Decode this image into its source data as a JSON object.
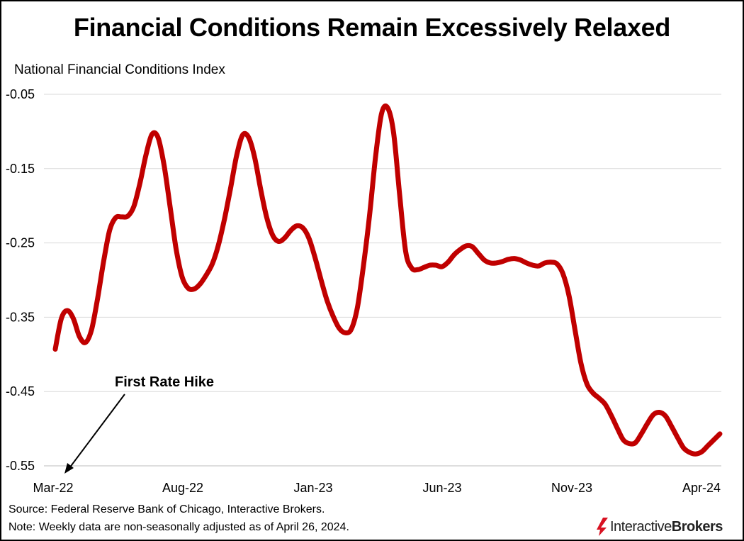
{
  "title": "Financial Conditions Remain Excessively Relaxed",
  "chart_data": {
    "type": "line",
    "title": "Financial Conditions Remain Excessively Relaxed",
    "ylabel": "National Financial Conditions Index",
    "ylim": [
      -0.55,
      -0.05
    ],
    "y_ticks": [
      -0.05,
      -0.15,
      -0.25,
      -0.35,
      -0.45,
      -0.55
    ],
    "y_tick_labels": [
      "-0.05",
      "-0.15",
      "-0.25",
      "-0.35",
      "-0.45",
      "-0.55"
    ],
    "x_tick_labels": [
      "Mar-22",
      "Aug-22",
      "Jan-23",
      "Jun-23",
      "Nov-23",
      "Apr-24"
    ],
    "grid": true,
    "line_color": "#c00000",
    "series": [
      {
        "values": [
          -0.393,
          -0.352,
          -0.341,
          -0.352,
          -0.376,
          -0.384,
          -0.367,
          -0.325,
          -0.275,
          -0.233,
          -0.216,
          -0.215,
          -0.214,
          -0.201,
          -0.17,
          -0.132,
          -0.104,
          -0.108,
          -0.145,
          -0.201,
          -0.258,
          -0.296,
          -0.311,
          -0.312,
          -0.305,
          -0.293,
          -0.278,
          -0.253,
          -0.218,
          -0.177,
          -0.133,
          -0.105,
          -0.108,
          -0.135,
          -0.178,
          -0.216,
          -0.24,
          -0.248,
          -0.243,
          -0.233,
          -0.227,
          -0.23,
          -0.244,
          -0.27,
          -0.3,
          -0.328,
          -0.349,
          -0.365,
          -0.371,
          -0.366,
          -0.337,
          -0.281,
          -0.214,
          -0.135,
          -0.076,
          -0.068,
          -0.102,
          -0.186,
          -0.262,
          -0.284,
          -0.286,
          -0.283,
          -0.28,
          -0.28,
          -0.282,
          -0.276,
          -0.266,
          -0.259,
          -0.254,
          -0.255,
          -0.264,
          -0.273,
          -0.277,
          -0.277,
          -0.275,
          -0.272,
          -0.271,
          -0.273,
          -0.277,
          -0.28,
          -0.281,
          -0.277,
          -0.276,
          -0.278,
          -0.291,
          -0.32,
          -0.366,
          -0.412,
          -0.44,
          -0.452,
          -0.459,
          -0.467,
          -0.482,
          -0.499,
          -0.515,
          -0.52,
          -0.519,
          -0.507,
          -0.493,
          -0.481,
          -0.478,
          -0.483,
          -0.497,
          -0.512,
          -0.526,
          -0.532,
          -0.534,
          -0.531,
          -0.523,
          -0.515,
          -0.507
        ]
      }
    ],
    "annotations": [
      {
        "text": "First Rate Hike",
        "points_to_x_index": 0
      }
    ]
  },
  "footer": {
    "source": "Source: Federal Reserve Bank of Chicago, Interactive Brokers.",
    "note": "Note: Weekly data are non-seasonally adjusted as of April 26, 2024."
  },
  "logo": {
    "part1": "Interactive",
    "part2": "Brokers",
    "color": "#d81222"
  }
}
